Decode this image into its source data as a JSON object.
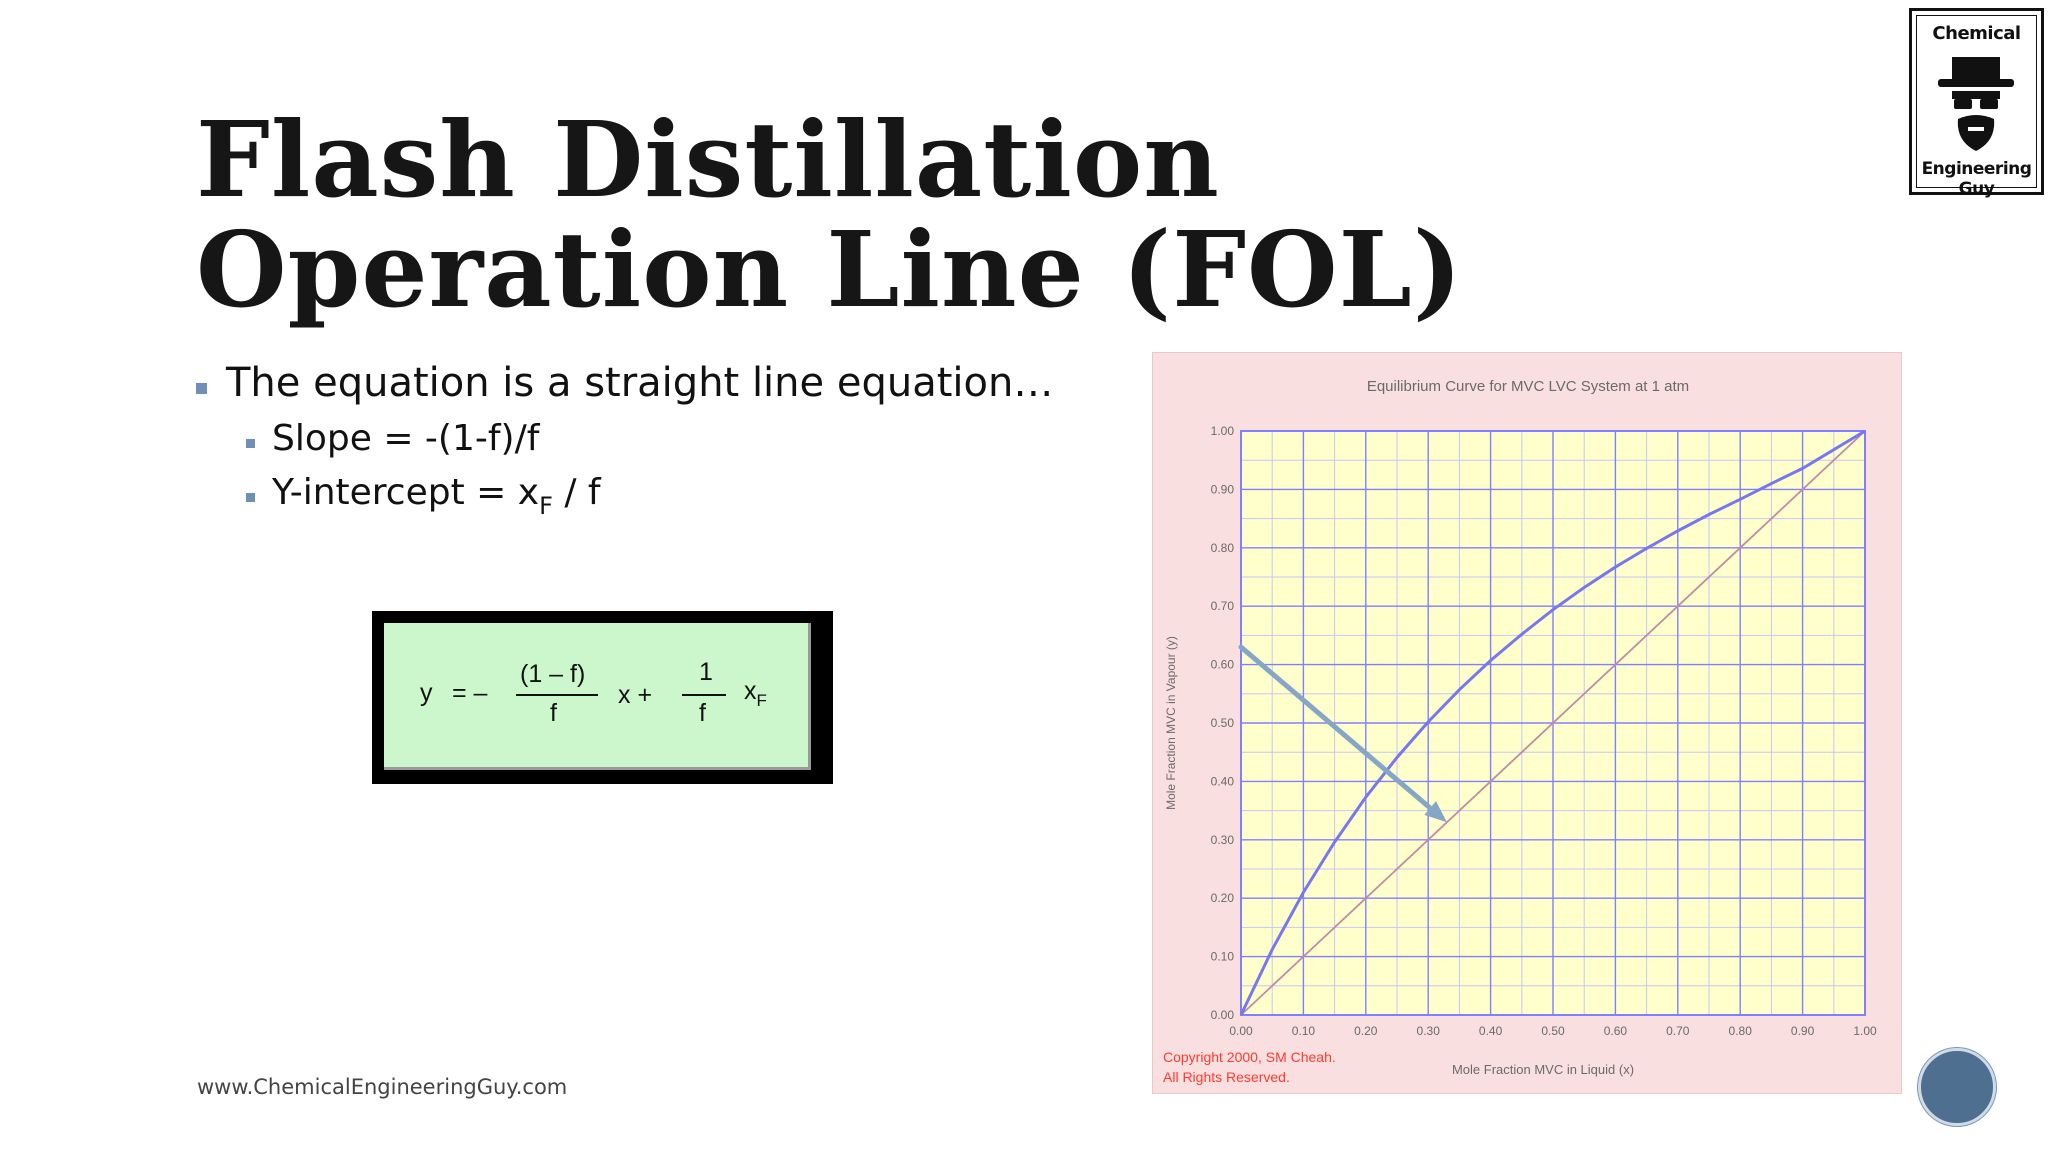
{
  "slide": {
    "title_line1": "Flash Distillation",
    "title_line2": "Operation Line (FOL)",
    "footer": "www.ChemicalEngineeringGuy.com"
  },
  "logo": {
    "top_text": "Chemical",
    "bottom_text": "Engineering Guy",
    "icon": "man-with-hat-glasses-beard-icon"
  },
  "bullets": {
    "main": "The equation is a straight line equation…",
    "slope": "Slope = -(1-f)/f",
    "intercept_prefix": "Y-intercept =  x",
    "intercept_sub": "F",
    "intercept_suffix": " / f"
  },
  "equation": {
    "y": "y",
    "eq_minus": "= –",
    "num1": "(1 – f)",
    "den1": "f",
    "x_plus": "x  +",
    "num2": "1",
    "den2": "f",
    "xf": "x",
    "xf_sub": "F"
  },
  "chart_data": {
    "type": "line",
    "title": "Equilibrium Curve for MVC LVC System at 1 atm",
    "xlabel": "Mole Fraction MVC in Liquid (x)",
    "ylabel": "Mole Fraction MVC in Vapour (y)",
    "xlim": [
      0,
      1
    ],
    "ylim": [
      0,
      1
    ],
    "x_ticks": [
      "0.00",
      "0.10",
      "0.20",
      "0.30",
      "0.40",
      "0.50",
      "0.60",
      "0.70",
      "0.80",
      "0.90",
      "1.00"
    ],
    "y_ticks": [
      "0.00",
      "0.10",
      "0.20",
      "0.30",
      "0.40",
      "0.50",
      "0.60",
      "0.70",
      "0.80",
      "0.90",
      "1.00"
    ],
    "grid": true,
    "series": [
      {
        "x": [
          0,
          0.05,
          0.1,
          0.15,
          0.2,
          0.25,
          0.3,
          0.35,
          0.4,
          0.45,
          0.5,
          0.55,
          0.6,
          0.65,
          0.7,
          0.75,
          0.8,
          0.85,
          0.9,
          0.95,
          1.0
        ],
        "values": [
          0,
          0.112,
          0.21,
          0.296,
          0.373,
          0.441,
          0.502,
          0.557,
          0.607,
          0.652,
          0.694,
          0.732,
          0.767,
          0.799,
          0.829,
          0.857,
          0.883,
          0.91,
          0.936,
          0.968,
          1.0
        ],
        "color": "#7777ee"
      },
      {
        "x": [
          0,
          1
        ],
        "values": [
          0,
          1
        ],
        "color": "#c08ca6"
      }
    ],
    "annotations": [
      {
        "type": "arrow",
        "from": [
          0.0,
          0.63
        ],
        "to": [
          0.33,
          0.33
        ],
        "color": "#86a6c6"
      }
    ],
    "copyright_line1": "Copyright 2000, SM Cheah.",
    "copyright_line2": "All Rights Reserved.",
    "colors": {
      "plot_bg": "#ffffcc",
      "grid_major": "#8080ff",
      "grid_minor": "#c6c6f4",
      "panel_bg": "#f9dfe0"
    }
  }
}
